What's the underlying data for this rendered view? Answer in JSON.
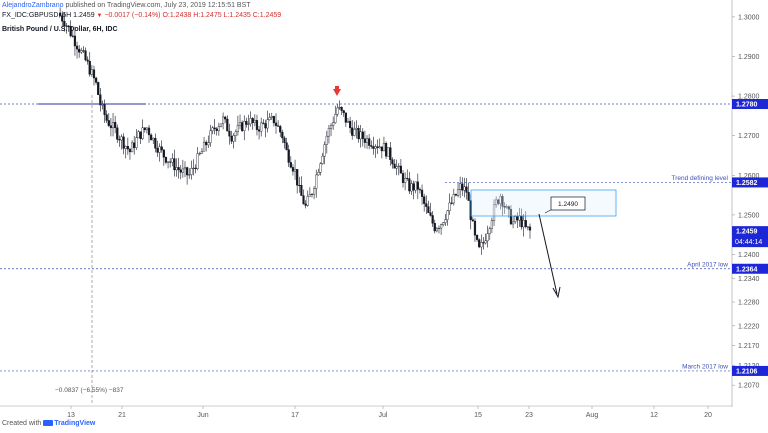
{
  "header": {
    "author": "AlejandroZambrano",
    "published": "published on TradingView.com, July 23, 2019 12:15:51 BST",
    "symbol_line": "FX_IDC:GBPUSD, 6H 1.2459",
    "change": "−0.0017 (−0.14%)",
    "ohlc": "O:1.2438 H:1.2475 L:1.2435 C:1.2459",
    "instrument": "British Pound / U.S. Dollar, 6H, IDC"
  },
  "footer": {
    "created_with": "Created with",
    "brand": "TradingView"
  },
  "colors": {
    "up": "#ffffff",
    "down": "#131722",
    "level_line": "#3f51b5",
    "price_tag": "#1e27d6",
    "arrow_marker": "#e53935",
    "box": "#2196f3"
  },
  "chart_data": {
    "type": "candlestick",
    "symbol": "GBPUSD",
    "timeframe": "6H",
    "ylim": [
      1.202,
      1.303
    ],
    "y_ticks": [
      "1.3000",
      "1.2900",
      "1.2800",
      "1.2700",
      "1.2600",
      "1.2500",
      "1.2400",
      "1.2340",
      "1.2280",
      "1.2220",
      "1.2170",
      "1.2120",
      "1.2070"
    ],
    "x_ticks": [
      "13",
      "21",
      "Jun",
      "17",
      "Jul",
      "15",
      "23",
      "Aug",
      "12",
      "20"
    ],
    "levels": [
      {
        "value": 1.278,
        "label": "",
        "tag": "1.2780"
      },
      {
        "value": 1.2582,
        "label": "Trend defining level",
        "tag": "1.2582"
      },
      {
        "value": 1.2364,
        "label": "April 2017 low",
        "tag": "1.2364"
      },
      {
        "value": 1.2106,
        "label": "March 2017 low",
        "tag": "1.2106"
      }
    ],
    "current_price": {
      "tag": "1.2459",
      "countdown": "04:44:14"
    },
    "annotations": {
      "box_label": "1.2490",
      "measure_text": "−0.0837 (−6.55%) −837"
    },
    "close_path": [
      [
        0,
        1.301
      ],
      [
        3,
        1.299
      ],
      [
        6,
        1.296
      ],
      [
        10,
        1.292
      ],
      [
        14,
        1.288
      ],
      [
        18,
        1.283
      ],
      [
        20,
        1.278
      ],
      [
        23,
        1.274
      ],
      [
        26,
        1.272
      ],
      [
        30,
        1.269
      ],
      [
        34,
        1.266
      ],
      [
        38,
        1.27
      ],
      [
        42,
        1.272
      ],
      [
        46,
        1.268
      ],
      [
        50,
        1.265
      ],
      [
        54,
        1.263
      ],
      [
        58,
        1.261
      ],
      [
        62,
        1.26
      ],
      [
        66,
        1.264
      ],
      [
        70,
        1.268
      ],
      [
        74,
        1.272
      ],
      [
        78,
        1.274
      ],
      [
        82,
        1.27
      ],
      [
        86,
        1.272
      ],
      [
        90,
        1.274
      ],
      [
        94,
        1.272
      ],
      [
        98,
        1.273
      ],
      [
        102,
        1.274
      ],
      [
        106,
        1.27
      ],
      [
        108,
        1.266
      ],
      [
        112,
        1.261
      ],
      [
        114,
        1.256
      ],
      [
        117,
        1.252
      ],
      [
        120,
        1.256
      ],
      [
        124,
        1.264
      ],
      [
        127,
        1.27
      ],
      [
        130,
        1.274
      ],
      [
        132,
        1.277
      ],
      [
        135,
        1.275
      ],
      [
        138,
        1.272
      ],
      [
        142,
        1.27
      ],
      [
        146,
        1.269
      ],
      [
        150,
        1.268
      ],
      [
        154,
        1.267
      ],
      [
        158,
        1.264
      ],
      [
        162,
        1.26
      ],
      [
        166,
        1.257
      ],
      [
        170,
        1.257
      ],
      [
        172,
        1.254
      ],
      [
        175,
        1.25
      ],
      [
        178,
        1.247
      ],
      [
        181,
        1.248
      ],
      [
        184,
        1.251
      ],
      [
        187,
        1.254
      ],
      [
        190,
        1.257
      ],
      [
        193,
        1.256
      ],
      [
        195,
        1.25
      ],
      [
        197,
        1.244
      ],
      [
        199,
        1.241
      ],
      [
        201,
        1.243
      ],
      [
        204,
        1.248
      ],
      [
        207,
        1.253
      ],
      [
        209,
        1.255
      ],
      [
        212,
        1.251
      ],
      [
        215,
        1.248
      ],
      [
        218,
        1.249
      ],
      [
        221,
        1.2465
      ],
      [
        223,
        1.2459
      ]
    ],
    "series_span": {
      "x_start": 58,
      "x_end": 530,
      "index_max": 223
    }
  }
}
